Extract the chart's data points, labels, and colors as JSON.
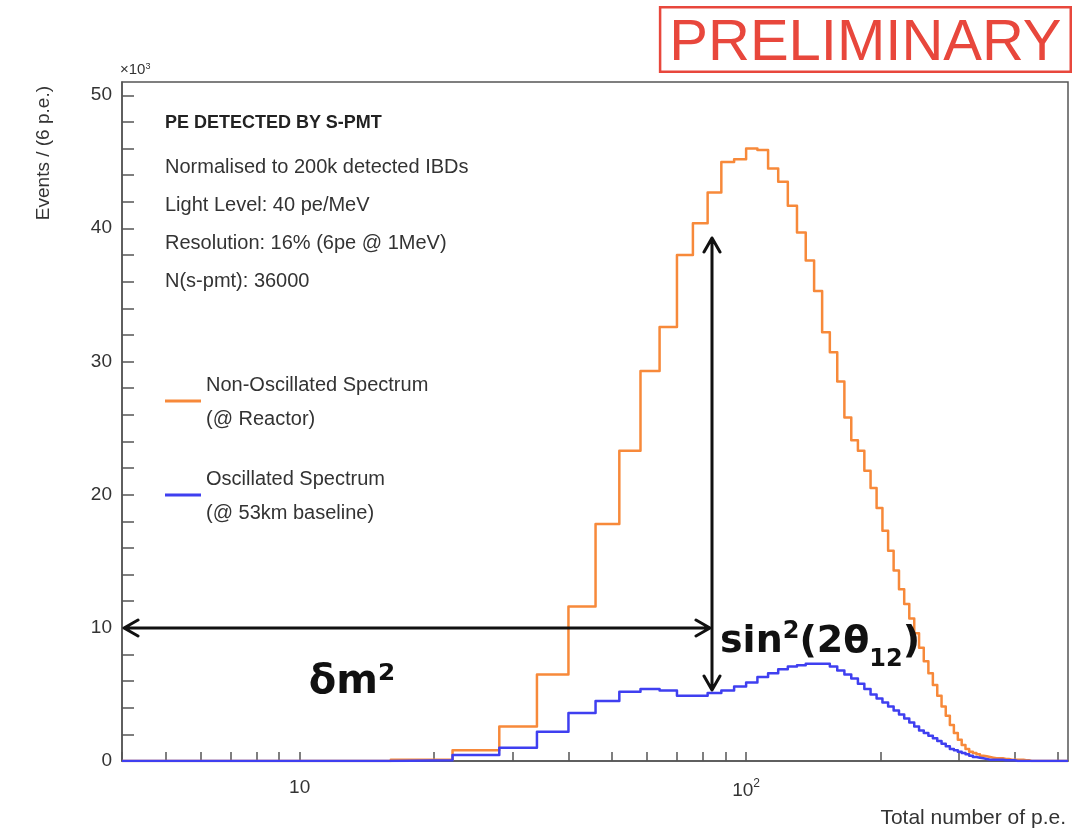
{
  "chart_data": {
    "type": "histogram",
    "title": "PE DETECTED BY S-PMT",
    "subtitle": "Normalised to 200k detected IBDs\nLight Level: 40 pe/MeV\nResolution: 16% (6pe @ 1MeV)\nN(s-pmt): 36000",
    "xlabel": "Total number of p.e.",
    "ylabel": "Events / (6 p.e.)",
    "annotations": [
      "PRELIMINARY",
      "×10$^{3}$",
      "δm²",
      "sin$^{2}$(2θ$_{12}$)"
    ],
    "bins": [
      4,
      10,
      16,
      22,
      28,
      34,
      40,
      46,
      52,
      58,
      64,
      70,
      76,
      82,
      88,
      94,
      100,
      106,
      112,
      118,
      124,
      130,
      136,
      142,
      148,
      154,
      160,
      166,
      172,
      178,
      184,
      190,
      196,
      202,
      208,
      214,
      220,
      226,
      232,
      238,
      244,
      250,
      256,
      262,
      268,
      274,
      280,
      286,
      292,
      298,
      304,
      310,
      316,
      322,
      328,
      334,
      340,
      346,
      352,
      358,
      364,
      370,
      376,
      382,
      388,
      394,
      400,
      406,
      412,
      418,
      424,
      430,
      436,
      442,
      448,
      454,
      460,
      466,
      472,
      478,
      484,
      490,
      496,
      502,
      508,
      514,
      520,
      526
    ],
    "series": [
      {
        "name": "Non-Oscillated Spectrum (@ Reactor)",
        "color": "#f7893a",
        "values": [
          0,
          0,
          0.1,
          0.8,
          2.6,
          6.5,
          11.6,
          17.8,
          23.3,
          29.3,
          32.6,
          38.0,
          40.4,
          42.7,
          45.0,
          45.2,
          46.0,
          45.9,
          44.5,
          43.5,
          41.7,
          39.7,
          37.6,
          35.3,
          32.2,
          30.7,
          28.5,
          25.8,
          24.1,
          23.3,
          21.8,
          20.5,
          19.0,
          17.3,
          15.8,
          14.3,
          12.9,
          11.8,
          10.7,
          9.6,
          8.5,
          7.5,
          6.6,
          5.7,
          4.9,
          4.1,
          3.4,
          2.7,
          2.1,
          1.6,
          1.2,
          0.9,
          0.7,
          0.6,
          0.5,
          0.4,
          0.35,
          0.3,
          0.25,
          0.2,
          0.2,
          0.2,
          0.15,
          0.15,
          0.1,
          0.1,
          0.1,
          0.1,
          0.1,
          0.05,
          0.05,
          0,
          0,
          0,
          0,
          0,
          0,
          0,
          0,
          0,
          0,
          0,
          0,
          0,
          0,
          0,
          0
        ]
      },
      {
        "name": "Oscillated Spectrum (@ 53km baseline)",
        "color": "#3f3ff0",
        "values": [
          0,
          0,
          0.05,
          0.45,
          1.0,
          2.2,
          3.6,
          4.5,
          5.2,
          5.4,
          5.3,
          4.9,
          4.9,
          5.1,
          5.3,
          5.6,
          5.9,
          6.3,
          6.6,
          6.9,
          7.1,
          7.2,
          7.3,
          7.3,
          7.3,
          7.1,
          6.8,
          6.5,
          6.2,
          5.8,
          5.4,
          5.0,
          4.7,
          4.4,
          4.1,
          3.8,
          3.5,
          3.2,
          2.9,
          2.6,
          2.3,
          2.1,
          1.9,
          1.7,
          1.5,
          1.3,
          1.1,
          0.9,
          0.8,
          0.7,
          0.6,
          0.5,
          0.4,
          0.3,
          0.25,
          0.2,
          0.15,
          0.1,
          0.1,
          0.1,
          0.1,
          0.1,
          0.05,
          0.05,
          0.05,
          0.05,
          0,
          0,
          0,
          0,
          0,
          0,
          0,
          0,
          0,
          0,
          0,
          0,
          0,
          0,
          0,
          0,
          0,
          0,
          0,
          0,
          0
        ]
      }
    ],
    "xlim": [
      4,
      526
    ],
    "ylim": [
      0,
      51
    ],
    "xticks": [
      {
        "value": 4,
        "label": null
      },
      {
        "value": 5,
        "label": null
      },
      {
        "value": 6,
        "label": null
      },
      {
        "value": 7,
        "label": null
      },
      {
        "value": 8,
        "label": null
      },
      {
        "value": 9,
        "label": null
      },
      10,
      {
        "value": 20,
        "label": null
      },
      {
        "value": 30,
        "label": null
      },
      {
        "value": 40,
        "label": null
      },
      {
        "value": 50,
        "label": null
      },
      {
        "value": 60,
        "label": null
      },
      {
        "value": 70,
        "label": null
      },
      {
        "value": 80,
        "label": null
      },
      {
        "value": 90,
        "label": null
      },
      {
        "value": 100,
        "label": "10$^{2}$"
      },
      {
        "value": 200,
        "label": null
      },
      {
        "value": 300,
        "label": null
      },
      {
        "value": 400,
        "label": null
      },
      {
        "value": 500,
        "label": null
      }
    ],
    "yticks": [
      0,
      {
        "value": 2,
        "label": null
      },
      {
        "value": 4,
        "label": null
      },
      {
        "value": 6,
        "label": null
      },
      {
        "value": 8,
        "label": null
      },
      10,
      {
        "value": 12,
        "label": null
      },
      {
        "value": 14,
        "label": null
      },
      {
        "value": 16,
        "label": null
      },
      {
        "value": 18,
        "label": null
      },
      20,
      {
        "value": 22,
        "label": null
      },
      {
        "value": 24,
        "label": null
      },
      {
        "value": 26,
        "label": null
      },
      {
        "value": 28,
        "label": null
      },
      30,
      {
        "value": 32,
        "label": null
      },
      {
        "value": 34,
        "label": null
      },
      {
        "value": 36,
        "label": null
      },
      {
        "value": 38,
        "label": null
      },
      40,
      {
        "value": 42,
        "label": null
      },
      {
        "value": 44,
        "label": null
      },
      {
        "value": 46,
        "label": null
      },
      {
        "value": 48,
        "label": null
      },
      50
    ],
    "log": "x",
    "legend": "left"
  }
}
